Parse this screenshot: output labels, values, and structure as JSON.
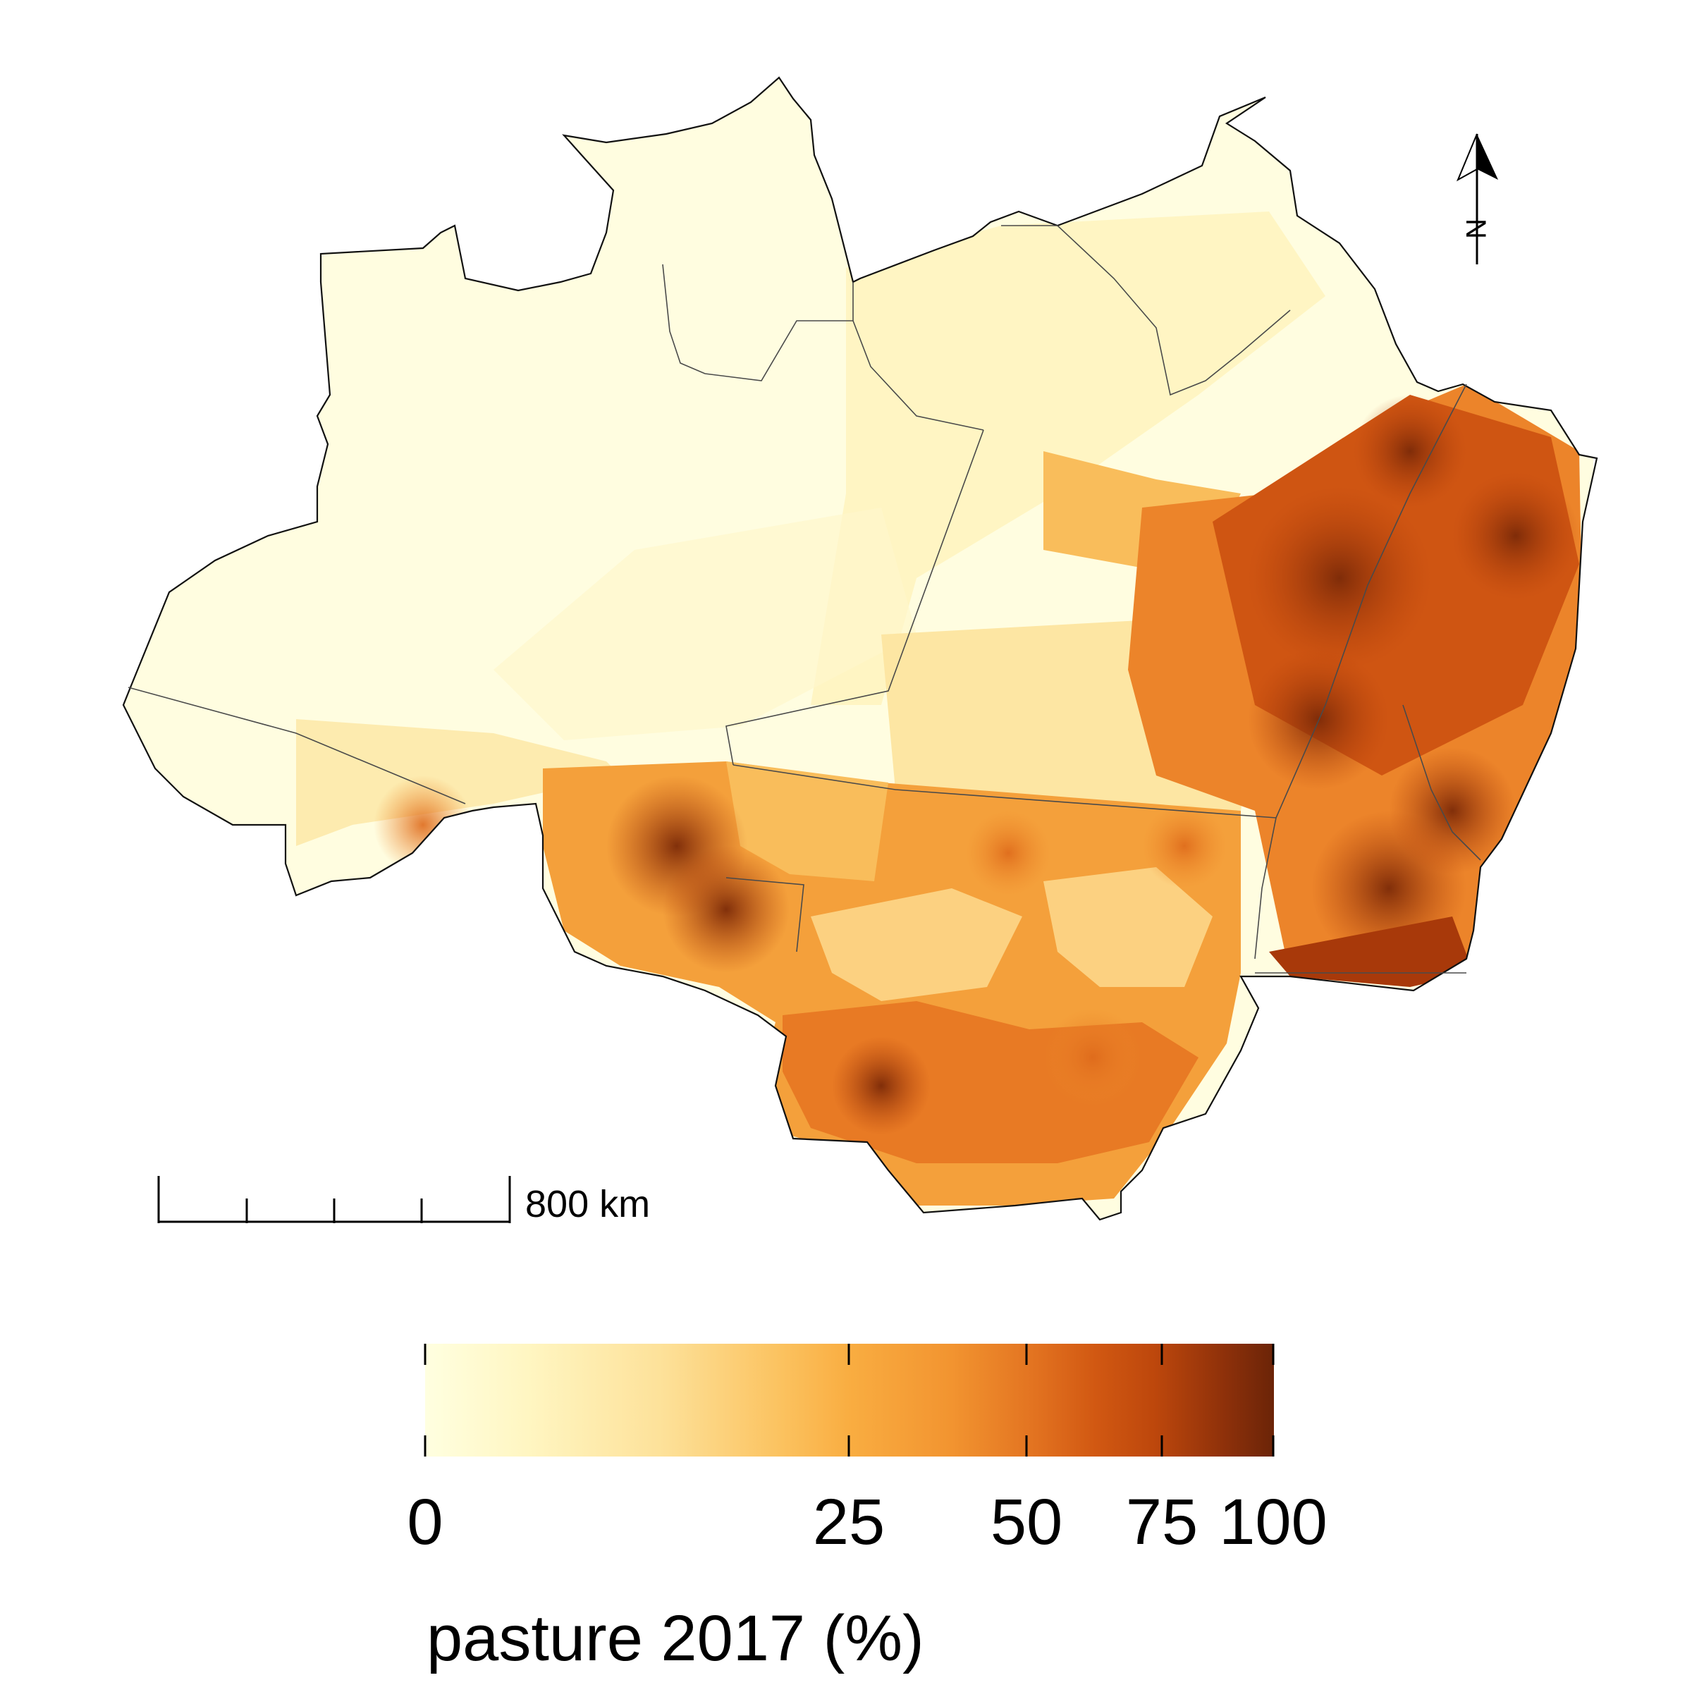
{
  "map": {
    "north_arrow_label": "N",
    "scale_bar_label": "800 km",
    "scale_bar_segments": 4
  },
  "legend": {
    "title": "pasture 2017 (%)",
    "ticks": [
      0,
      25,
      50,
      75,
      100
    ],
    "range": [
      0,
      100
    ],
    "scale": "nonlinear (quantile-stretched colour bar)",
    "colors": {
      "c0": "#ffffe0",
      "c10": "#fff1b4",
      "c20": "#fdd36e",
      "c25": "#f9ad41",
      "c40": "#ef8a2b",
      "c50": "#de6a1b",
      "c65": "#c84c0e",
      "c75": "#a8390a",
      "c100": "#6b2408"
    }
  },
  "regions": [
    {
      "name": "north-west",
      "level": "very low"
    },
    {
      "name": "north-centre",
      "level": "low"
    },
    {
      "name": "south-west",
      "level": "moderate"
    },
    {
      "name": "south",
      "level": "moderate to high"
    },
    {
      "name": "east",
      "level": "high to very high"
    }
  ]
}
